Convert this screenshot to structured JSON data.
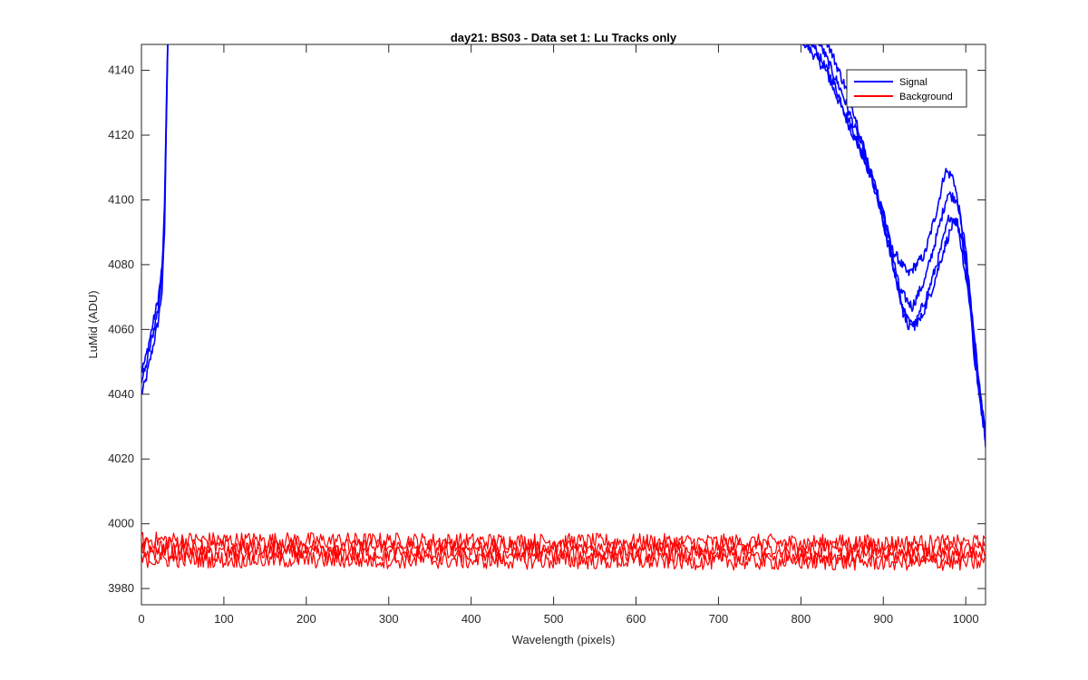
{
  "chart_data": {
    "type": "line",
    "title": "day21: BS03 - Data set 1: Lu Tracks only",
    "xlabel": "Wavelength (pixels)",
    "ylabel": "LuMid (ADU)",
    "xlim": [
      0,
      1024
    ],
    "ylim": [
      3975,
      4148
    ],
    "x_ticks": [
      0,
      100,
      200,
      300,
      400,
      500,
      600,
      700,
      800,
      900,
      1000
    ],
    "y_ticks": [
      3980,
      4000,
      4020,
      4040,
      4060,
      4080,
      4100,
      4120,
      4140
    ],
    "grid": false,
    "legend": {
      "location": "top-right",
      "entries": [
        "Signal",
        "Background"
      ]
    },
    "series": [
      {
        "name": "Signal",
        "color": "#0000ff",
        "traces": [
          {
            "x": [
              0,
              5,
              10,
              15,
              20,
              25,
              28,
              30,
              32
            ],
            "y": [
              4040,
              4044,
              4050,
              4056,
              4062,
              4072,
              4090,
              4120,
              4150
            ]
          },
          {
            "x": [
              0,
              5,
              10,
              15,
              20,
              25,
              28,
              30,
              32
            ],
            "y": [
              4044,
              4048,
              4054,
              4060,
              4066,
              4076,
              4094,
              4124,
              4150
            ]
          },
          {
            "x": [
              0,
              5,
              10,
              15,
              20,
              25,
              28,
              30,
              32
            ],
            "y": [
              4047,
              4051,
              4057,
              4063,
              4069,
              4079,
              4097,
              4127,
              4150
            ]
          },
          {
            "x": [
              800,
              830,
              860,
              890,
              910,
              930,
              950,
              965,
              975,
              985,
              1000,
              1010,
              1024
            ],
            "y": [
              4150,
              4140,
              4122,
              4105,
              4085,
              4077,
              4083,
              4097,
              4109,
              4107,
              4085,
              4052,
              4028
            ]
          },
          {
            "x": [
              810,
              840,
              870,
              900,
              920,
              935,
              950,
              965,
              978,
              990,
              1005,
              1015,
              1024
            ],
            "y": [
              4150,
              4136,
              4117,
              4097,
              4072,
              4067,
              4075,
              4089,
              4102,
              4100,
              4072,
              4045,
              4027
            ]
          },
          {
            "x": [
              820,
              850,
              880,
              905,
              925,
              938,
              955,
              968,
              980,
              990,
              1005,
              1015,
              1024
            ],
            "y": [
              4150,
              4133,
              4112,
              4088,
              4064,
              4061,
              4072,
              4083,
              4095,
              4093,
              4068,
              4042,
              4026
            ]
          },
          {
            "x": [
              830,
              860,
              890,
              912,
              930,
              945,
              960,
              975,
              985,
              995,
              1008,
              1018,
              1024
            ],
            "y": [
              4150,
              4131,
              4104,
              4079,
              4061,
              4063,
              4073,
              4086,
              4093,
              4089,
              4063,
              4040,
              4025
            ]
          }
        ]
      },
      {
        "name": "Background",
        "color": "#ff0000",
        "traces": [
          {
            "x": [
              0,
              1024
            ],
            "y": [
              3995,
              3994
            ]
          },
          {
            "x": [
              0,
              1024
            ],
            "y": [
              3993,
              3992
            ]
          },
          {
            "x": [
              0,
              1024
            ],
            "y": [
              3991,
              3990
            ]
          },
          {
            "x": [
              0,
              1024
            ],
            "y": [
              3989,
              3988
            ]
          }
        ]
      }
    ]
  }
}
